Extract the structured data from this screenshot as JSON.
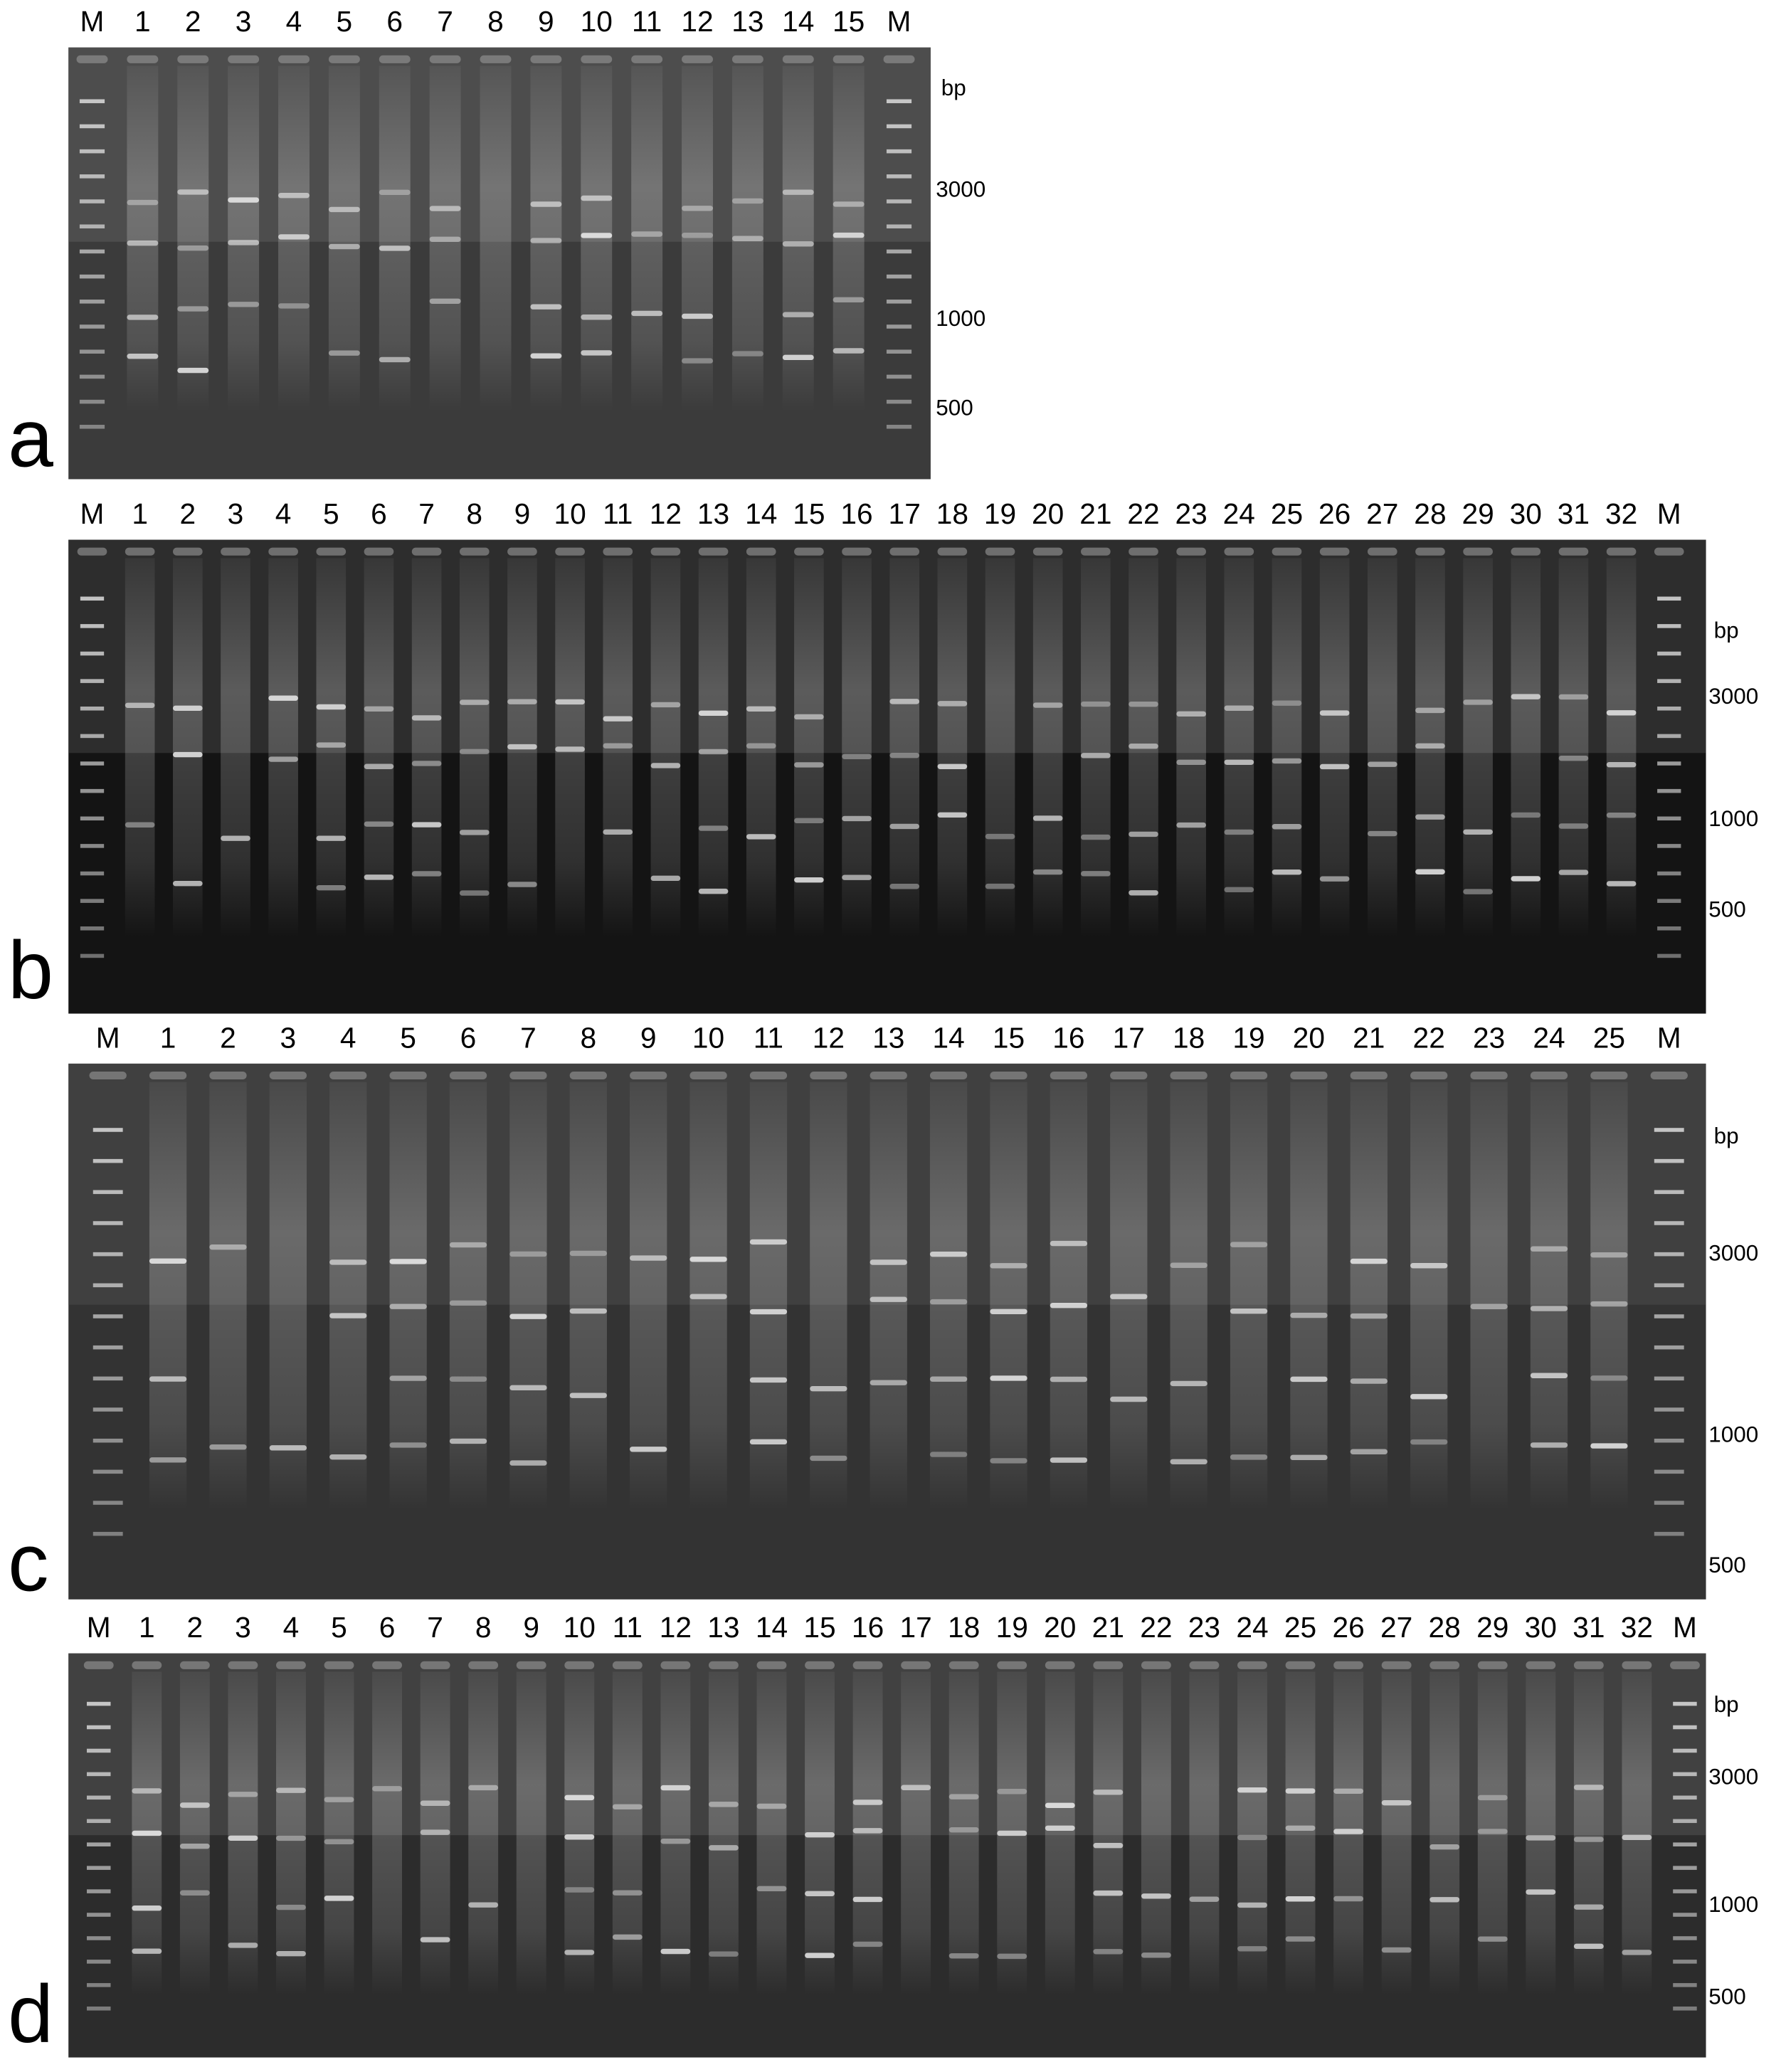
{
  "panels": [
    {
      "letter": "a",
      "lanes": [
        "M",
        "1",
        "2",
        "3",
        "4",
        "5",
        "6",
        "7",
        "8",
        "9",
        "10",
        "11",
        "12",
        "13",
        "14",
        "15",
        "M"
      ],
      "size_labels": [
        "bp",
        "3000",
        "1000",
        "500"
      ]
    },
    {
      "letter": "b",
      "lanes": [
        "M",
        "1",
        "2",
        "3",
        "4",
        "5",
        "6",
        "7",
        "8",
        "9",
        "10",
        "11",
        "12",
        "13",
        "14",
        "15",
        "16",
        "17",
        "18",
        "19",
        "20",
        "21",
        "22",
        "23",
        "24",
        "25",
        "26",
        "27",
        "28",
        "29",
        "30",
        "31",
        "32",
        "M"
      ],
      "size_labels": [
        "bp",
        "3000",
        "1000",
        "500"
      ]
    },
    {
      "letter": "c",
      "lanes": [
        "M",
        "1",
        "2",
        "3",
        "4",
        "5",
        "6",
        "7",
        "8",
        "9",
        "10",
        "11",
        "12",
        "13",
        "14",
        "15",
        "16",
        "17",
        "18",
        "19",
        "20",
        "21",
        "22",
        "23",
        "24",
        "25",
        "M"
      ],
      "size_labels": [
        "bp",
        "3000",
        "1000",
        "500"
      ]
    },
    {
      "letter": "d",
      "lanes": [
        "M",
        "1",
        "2",
        "3",
        "4",
        "5",
        "6",
        "7",
        "8",
        "9",
        "10",
        "11",
        "12",
        "13",
        "14",
        "15",
        "16",
        "17",
        "18",
        "19",
        "20",
        "21",
        "22",
        "23",
        "24",
        "25",
        "26",
        "27",
        "28",
        "29",
        "30",
        "31",
        "32",
        "M"
      ],
      "size_labels": [
        "bp",
        "3000",
        "1000",
        "500"
      ]
    }
  ]
}
